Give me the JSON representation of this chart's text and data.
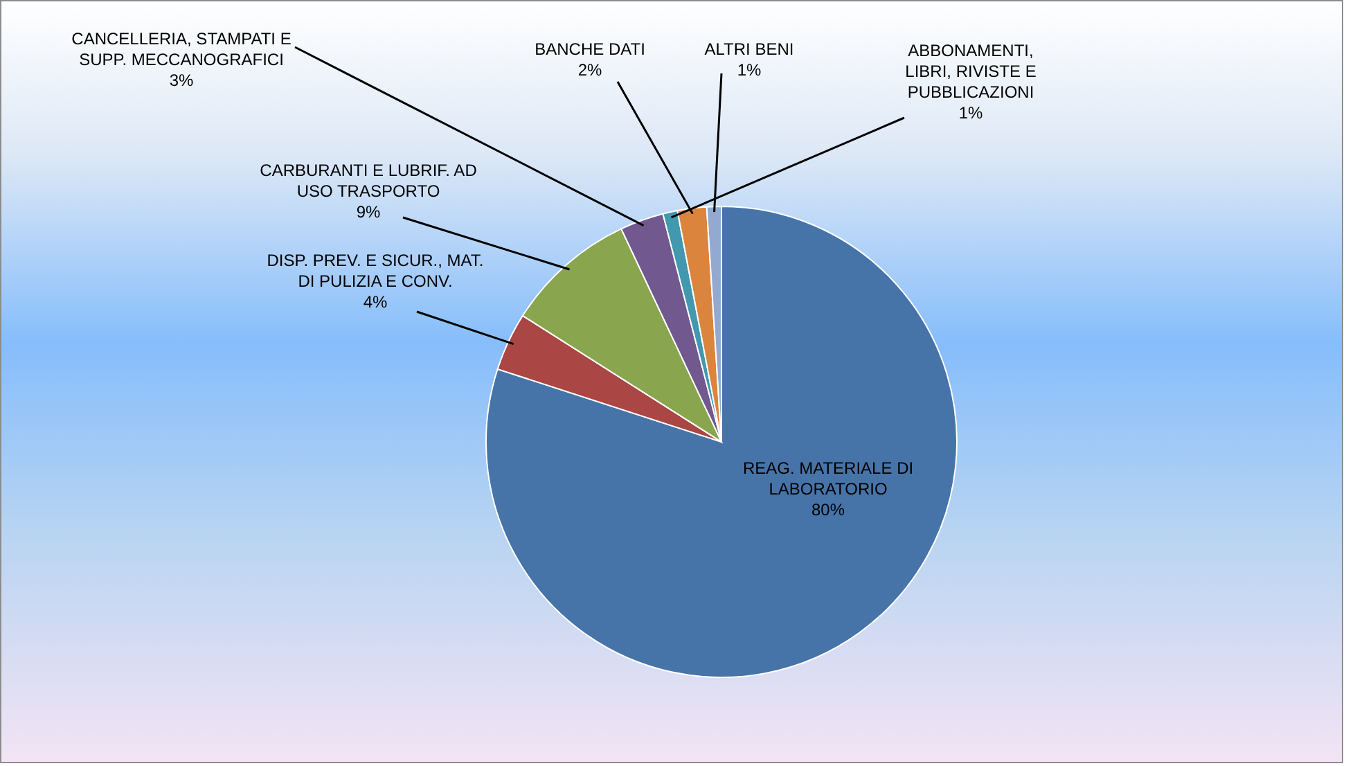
{
  "chart_data": {
    "type": "pie",
    "categories": [
      "REAG. MATERIALE DI LABORATORIO",
      "DISP. PREV. E SICUR., MAT. DI PULIZIA E CONV.",
      "CARBURANTI E LUBRIF. AD USO TRASPORTO",
      "CANCELLERIA, STAMPATI E SUPP. MECCANOGRAFICI",
      "ABBONAMENTI, LIBRI, RIVISTE E PUBBLICAZIONI",
      "BANCHE DATI",
      "ALTRI BENI"
    ],
    "values": [
      80,
      4,
      9,
      3,
      1,
      2,
      1
    ],
    "value_labels": [
      "80%",
      "4%",
      "9%",
      "3%",
      "1%",
      "2%",
      "1%"
    ],
    "colors": [
      "#4674a9",
      "#aa4643",
      "#89a54e",
      "#71588f",
      "#4198af",
      "#db843d",
      "#93a9cf"
    ]
  }
}
